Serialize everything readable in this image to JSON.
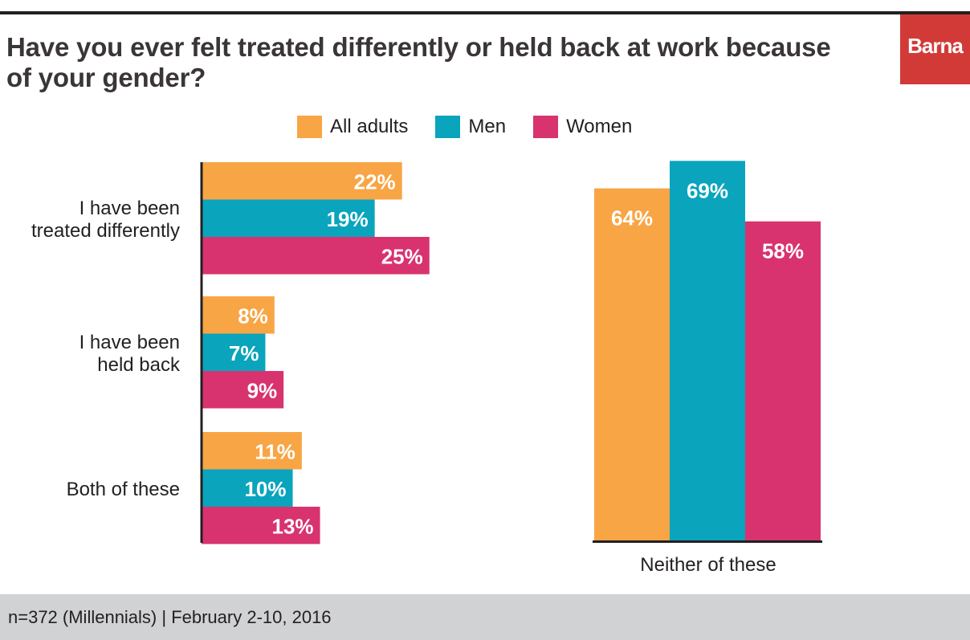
{
  "title": "Have you ever felt treated differently or held back at work because of your gender?",
  "logo": {
    "text": "Barna"
  },
  "footer": {
    "note": "n=372 (Millennials) | February 2-10, 2016"
  },
  "colors": {
    "All adults": "#f8a545",
    "Men": "#0aa4bd",
    "Women": "#d8336f",
    "logo": "#d23a38",
    "footer": "#d1d2d4"
  },
  "legend": [
    "All adults",
    "Men",
    "Women"
  ],
  "chart_data": [
    {
      "type": "bar",
      "orientation": "horizontal",
      "categories": [
        "I have been treated differently",
        "I have been held back",
        "Both of these"
      ],
      "series": [
        {
          "name": "All adults",
          "values": [
            22,
            8,
            11
          ]
        },
        {
          "name": "Men",
          "values": [
            19,
            7,
            10
          ]
        },
        {
          "name": "Women",
          "values": [
            25,
            9,
            13
          ]
        }
      ],
      "value_labels": [
        [
          "22%",
          "8%",
          "11%"
        ],
        [
          "19%",
          "7%",
          "10%"
        ],
        [
          "25%",
          "9%",
          "13%"
        ]
      ],
      "unit": "%"
    },
    {
      "type": "bar",
      "orientation": "vertical",
      "categories": [
        "Neither of these"
      ],
      "series": [
        {
          "name": "All adults",
          "values": [
            64
          ]
        },
        {
          "name": "Men",
          "values": [
            69
          ]
        },
        {
          "name": "Women",
          "values": [
            58
          ]
        }
      ],
      "value_labels": [
        [
          "64%"
        ],
        [
          "69%"
        ],
        [
          "58%"
        ]
      ],
      "unit": "%"
    }
  ]
}
